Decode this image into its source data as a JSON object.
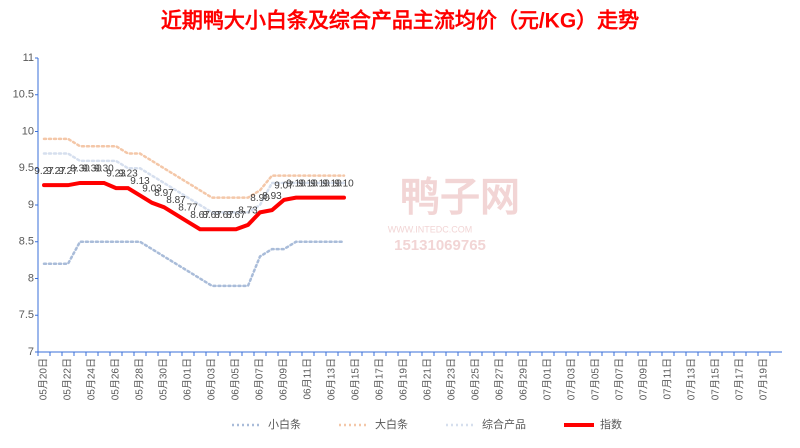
{
  "chart_data": {
    "type": "line",
    "title": "近期鸭大小白条及综合产品主流均价（元/KG）走势",
    "watermark": [
      "鸭子网",
      "WWW.INTEDC.COM",
      "15131069765"
    ],
    "categories": [
      "05月20日",
      null,
      "05月22日",
      null,
      "05月24日",
      null,
      "05月26日",
      null,
      "05月28日",
      null,
      "05月30日",
      null,
      "06月01日",
      null,
      "06月03日",
      null,
      "06月05日",
      null,
      "06月07日",
      null,
      "06月09日",
      null,
      "06月11日",
      null,
      "06月13日",
      null,
      "06月15日",
      null,
      "06月17日",
      null,
      "06月19日",
      null,
      "06月21日",
      null,
      "06月23日",
      null,
      "06月25日",
      null,
      "06月27日",
      null,
      "06月29日",
      null,
      "07月01日",
      null,
      "07月03日",
      null,
      "07月05日",
      null,
      "07月07日",
      null,
      "07月09日",
      null,
      "07月11日",
      null,
      "07月13日",
      null,
      "07月15日",
      null,
      "07月17日",
      null,
      "07月19日",
      null
    ],
    "ylim": [
      7,
      11
    ],
    "yticks": [
      7,
      7.5,
      8,
      8.5,
      9,
      9.5,
      10,
      10.5,
      11
    ],
    "series": [
      {
        "name": "小白条",
        "color": "#a9bcd9",
        "style": "dotted",
        "values": [
          8.2,
          8.2,
          8.2,
          8.5,
          8.5,
          8.5,
          8.5,
          8.5,
          8.5,
          8.4,
          8.3,
          8.2,
          8.1,
          8.0,
          7.9,
          7.9,
          7.9,
          7.9,
          8.3,
          8.4,
          8.4,
          8.5,
          8.5,
          8.5,
          8.5,
          8.5,
          null,
          null,
          null,
          null,
          null,
          null,
          null,
          null,
          null,
          null,
          null,
          null,
          null,
          null,
          null,
          null,
          null,
          null,
          null,
          null,
          null,
          null,
          null,
          null,
          null,
          null,
          null,
          null,
          null,
          null,
          null,
          null,
          null,
          null,
          null,
          null
        ]
      },
      {
        "name": "大白条",
        "color": "#f4c7a8",
        "style": "dotted",
        "values": [
          9.9,
          9.9,
          9.9,
          9.8,
          9.8,
          9.8,
          9.8,
          9.7,
          9.7,
          9.6,
          9.5,
          9.4,
          9.3,
          9.2,
          9.1,
          9.1,
          9.1,
          9.1,
          9.2,
          9.4,
          9.4,
          9.4,
          9.4,
          9.4,
          9.4,
          9.4,
          null,
          null,
          null,
          null,
          null,
          null,
          null,
          null,
          null,
          null,
          null,
          null,
          null,
          null,
          null,
          null,
          null,
          null,
          null,
          null,
          null,
          null,
          null,
          null,
          null,
          null,
          null,
          null,
          null,
          null,
          null,
          null,
          null,
          null,
          null,
          null
        ]
      },
      {
        "name": "综合产品",
        "color": "#d6dfee",
        "style": "dotted",
        "values": [
          9.7,
          9.7,
          9.7,
          9.6,
          9.6,
          9.6,
          9.6,
          9.5,
          9.5,
          9.4,
          9.3,
          9.2,
          9.1,
          9.0,
          8.9,
          8.9,
          8.9,
          8.9,
          9.0,
          9.3,
          9.3,
          9.3,
          9.3,
          9.3,
          9.3,
          9.3,
          null,
          null,
          null,
          null,
          null,
          null,
          null,
          null,
          null,
          null,
          null,
          null,
          null,
          null,
          null,
          null,
          null,
          null,
          null,
          null,
          null,
          null,
          null,
          null,
          null,
          null,
          null,
          null,
          null,
          null,
          null,
          null,
          null,
          null,
          null,
          null
        ]
      },
      {
        "name": "指数",
        "color": "#ff0000",
        "style": "solid",
        "values": [
          9.27,
          9.27,
          9.27,
          9.3,
          9.3,
          9.3,
          9.23,
          9.23,
          9.13,
          9.03,
          8.97,
          8.87,
          8.77,
          8.67,
          8.67,
          8.67,
          8.67,
          8.73,
          8.9,
          8.93,
          9.07,
          9.1,
          9.1,
          9.1,
          9.1,
          9.1,
          null,
          null,
          null,
          null,
          null,
          null,
          null,
          null,
          null,
          null,
          null,
          null,
          null,
          null,
          null,
          null,
          null,
          null,
          null,
          null,
          null,
          null,
          null,
          null,
          null,
          null,
          null,
          null,
          null,
          null,
          null,
          null,
          null,
          null,
          null,
          null
        ],
        "value_labels": [
          "9.27",
          "9.27",
          "9.27",
          "9.30",
          "9.30",
          "9.30",
          "9.23",
          "9.23",
          "9.13",
          "9.03",
          "8.97",
          "8.87",
          "8.77",
          "8.67",
          "8.67",
          "8.67",
          "8.67",
          "8.73",
          "8.90",
          "8.93",
          "9.07",
          "9.10",
          "9.10",
          "9.10",
          "9.10",
          "9.10",
          null,
          null,
          null,
          null,
          null,
          null,
          null,
          null,
          null,
          null,
          null,
          null,
          null,
          null,
          null,
          null,
          null,
          null,
          null,
          null,
          null,
          null,
          null,
          null,
          null,
          null,
          null,
          null,
          null,
          null,
          null,
          null,
          null,
          null,
          null,
          null
        ]
      }
    ]
  }
}
